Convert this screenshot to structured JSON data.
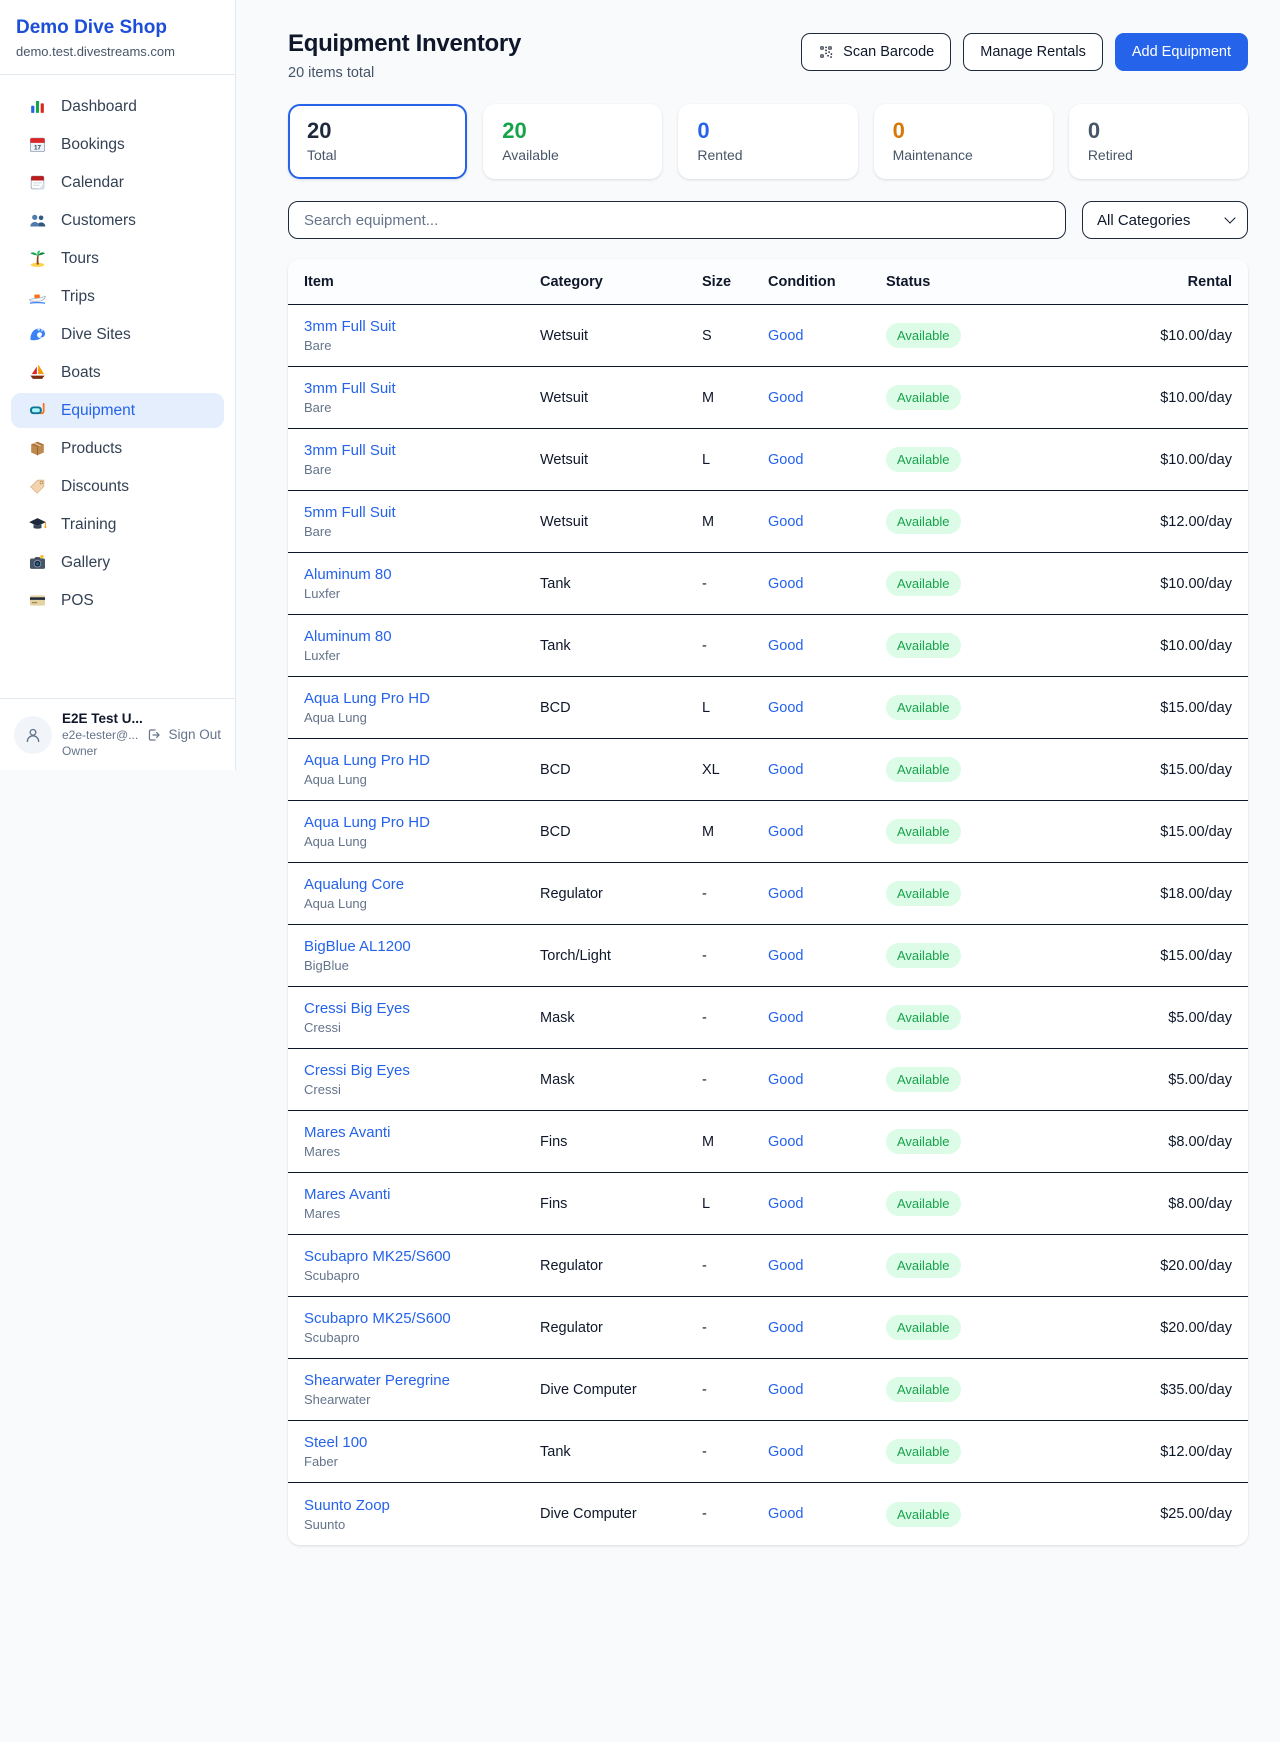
{
  "sidebar": {
    "shop_name": "Demo Dive Shop",
    "shop_domain": "demo.test.divestreams.com",
    "items": [
      {
        "id": "dashboard",
        "label": "Dashboard",
        "icon": "bar-chart"
      },
      {
        "id": "bookings",
        "label": "Bookings",
        "icon": "calendar-date"
      },
      {
        "id": "calendar",
        "label": "Calendar",
        "icon": "calendar"
      },
      {
        "id": "customers",
        "label": "Customers",
        "icon": "people"
      },
      {
        "id": "tours",
        "label": "Tours",
        "icon": "palm-tree"
      },
      {
        "id": "trips",
        "label": "Trips",
        "icon": "speedboat"
      },
      {
        "id": "dive-sites",
        "label": "Dive Sites",
        "icon": "wave"
      },
      {
        "id": "boats",
        "label": "Boats",
        "icon": "sailboat"
      },
      {
        "id": "equipment",
        "label": "Equipment",
        "icon": "dive-mask",
        "active": true
      },
      {
        "id": "products",
        "label": "Products",
        "icon": "package"
      },
      {
        "id": "discounts",
        "label": "Discounts",
        "icon": "price-tag"
      },
      {
        "id": "training",
        "label": "Training",
        "icon": "graduation-cap"
      },
      {
        "id": "gallery",
        "label": "Gallery",
        "icon": "camera"
      },
      {
        "id": "pos",
        "label": "POS",
        "icon": "credit-card"
      }
    ],
    "user": {
      "name": "E2E Test U...",
      "email": "e2e-tester@...",
      "role": "Owner",
      "sign_out_label": "Sign Out"
    }
  },
  "header": {
    "title": "Equipment Inventory",
    "subtitle": "20 items total",
    "scan_barcode_label": "Scan Barcode",
    "manage_rentals_label": "Manage Rentals",
    "add_equipment_label": "Add Equipment"
  },
  "stats": [
    {
      "id": "total",
      "value": "20",
      "label": "Total",
      "color": "#1e293b",
      "active": true
    },
    {
      "id": "available",
      "value": "20",
      "label": "Available",
      "color": "#16a34a"
    },
    {
      "id": "rented",
      "value": "0",
      "label": "Rented",
      "color": "#2563eb"
    },
    {
      "id": "maintenance",
      "value": "0",
      "label": "Maintenance",
      "color": "#d97706"
    },
    {
      "id": "retired",
      "value": "0",
      "label": "Retired",
      "color": "#475569"
    }
  ],
  "filters": {
    "search_placeholder": "Search equipment...",
    "category_selected": "All Categories"
  },
  "table": {
    "columns": [
      "Item",
      "Category",
      "Size",
      "Condition",
      "Status",
      "Rental"
    ],
    "rows": [
      {
        "item": "3mm Full Suit",
        "brand": "Bare",
        "category": "Wetsuit",
        "size": "S",
        "condition": "Good",
        "status": "Available",
        "rental": "$10.00/day"
      },
      {
        "item": "3mm Full Suit",
        "brand": "Bare",
        "category": "Wetsuit",
        "size": "M",
        "condition": "Good",
        "status": "Available",
        "rental": "$10.00/day"
      },
      {
        "item": "3mm Full Suit",
        "brand": "Bare",
        "category": "Wetsuit",
        "size": "L",
        "condition": "Good",
        "status": "Available",
        "rental": "$10.00/day"
      },
      {
        "item": "5mm Full Suit",
        "brand": "Bare",
        "category": "Wetsuit",
        "size": "M",
        "condition": "Good",
        "status": "Available",
        "rental": "$12.00/day"
      },
      {
        "item": "Aluminum 80",
        "brand": "Luxfer",
        "category": "Tank",
        "size": "-",
        "condition": "Good",
        "status": "Available",
        "rental": "$10.00/day"
      },
      {
        "item": "Aluminum 80",
        "brand": "Luxfer",
        "category": "Tank",
        "size": "-",
        "condition": "Good",
        "status": "Available",
        "rental": "$10.00/day"
      },
      {
        "item": "Aqua Lung Pro HD",
        "brand": "Aqua Lung",
        "category": "BCD",
        "size": "L",
        "condition": "Good",
        "status": "Available",
        "rental": "$15.00/day"
      },
      {
        "item": "Aqua Lung Pro HD",
        "brand": "Aqua Lung",
        "category": "BCD",
        "size": "XL",
        "condition": "Good",
        "status": "Available",
        "rental": "$15.00/day"
      },
      {
        "item": "Aqua Lung Pro HD",
        "brand": "Aqua Lung",
        "category": "BCD",
        "size": "M",
        "condition": "Good",
        "status": "Available",
        "rental": "$15.00/day"
      },
      {
        "item": "Aqualung Core",
        "brand": "Aqua Lung",
        "category": "Regulator",
        "size": "-",
        "condition": "Good",
        "status": "Available",
        "rental": "$18.00/day"
      },
      {
        "item": "BigBlue AL1200",
        "brand": "BigBlue",
        "category": "Torch/Light",
        "size": "-",
        "condition": "Good",
        "status": "Available",
        "rental": "$15.00/day"
      },
      {
        "item": "Cressi Big Eyes",
        "brand": "Cressi",
        "category": "Mask",
        "size": "-",
        "condition": "Good",
        "status": "Available",
        "rental": "$5.00/day"
      },
      {
        "item": "Cressi Big Eyes",
        "brand": "Cressi",
        "category": "Mask",
        "size": "-",
        "condition": "Good",
        "status": "Available",
        "rental": "$5.00/day"
      },
      {
        "item": "Mares Avanti",
        "brand": "Mares",
        "category": "Fins",
        "size": "M",
        "condition": "Good",
        "status": "Available",
        "rental": "$8.00/day"
      },
      {
        "item": "Mares Avanti",
        "brand": "Mares",
        "category": "Fins",
        "size": "L",
        "condition": "Good",
        "status": "Available",
        "rental": "$8.00/day"
      },
      {
        "item": "Scubapro MK25/S600",
        "brand": "Scubapro",
        "category": "Regulator",
        "size": "-",
        "condition": "Good",
        "status": "Available",
        "rental": "$20.00/day"
      },
      {
        "item": "Scubapro MK25/S600",
        "brand": "Scubapro",
        "category": "Regulator",
        "size": "-",
        "condition": "Good",
        "status": "Available",
        "rental": "$20.00/day"
      },
      {
        "item": "Shearwater Peregrine",
        "brand": "Shearwater",
        "category": "Dive Computer",
        "size": "-",
        "condition": "Good",
        "status": "Available",
        "rental": "$35.00/day"
      },
      {
        "item": "Steel 100",
        "brand": "Faber",
        "category": "Tank",
        "size": "-",
        "condition": "Good",
        "status": "Available",
        "rental": "$12.00/day"
      },
      {
        "item": "Suunto Zoop",
        "brand": "Suunto",
        "category": "Dive Computer",
        "size": "-",
        "condition": "Good",
        "status": "Available",
        "rental": "$25.00/day"
      }
    ]
  },
  "colors": {
    "accent": "#2563eb",
    "brand_title": "#1d4ed8",
    "available_badge_bg": "#dcfce7",
    "available_badge_text": "#16a34a",
    "sidebar_active_bg": "#e4eefc"
  }
}
